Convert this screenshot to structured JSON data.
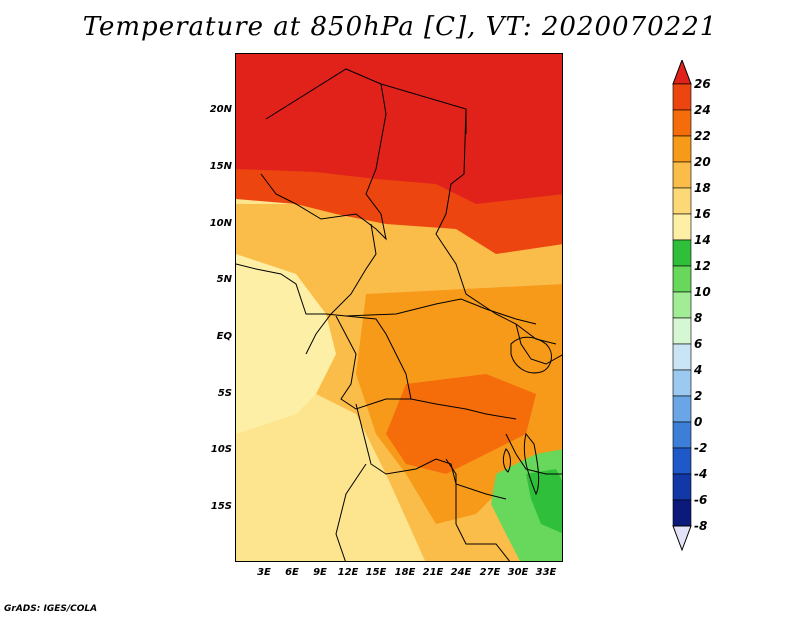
{
  "title": "Temperature at 850hPa [C], VT: 2020070221",
  "footer": "GrADS: IGES/COLA",
  "lat_labels": [
    "20N",
    "15N",
    "10N",
    "5N",
    "EQ",
    "5S",
    "10S",
    "15S"
  ],
  "lon_labels": [
    "3E",
    "6E",
    "9E",
    "12E",
    "15E",
    "18E",
    "21E",
    "24E",
    "27E",
    "30E",
    "33E"
  ],
  "colorbar": {
    "levels": [
      "26",
      "24",
      "22",
      "20",
      "18",
      "16",
      "14",
      "12",
      "10",
      "8",
      "6",
      "4",
      "2",
      "0",
      "-2",
      "-4",
      "-6",
      "-8"
    ],
    "colors": [
      "#e0221a",
      "#ec4510",
      "#f46d0a",
      "#f79a1a",
      "#fbbd4a",
      "#fcd877",
      "#fdf0a6",
      "#2fbf3a",
      "#67d85c",
      "#a3ec96",
      "#d6f7d3",
      "#c8e4f5",
      "#9cc9ef",
      "#6aa6e6",
      "#3d7fd8",
      "#1f58c8",
      "#1237a6",
      "#0b1a7a",
      "#e3e3f7"
    ]
  }
}
